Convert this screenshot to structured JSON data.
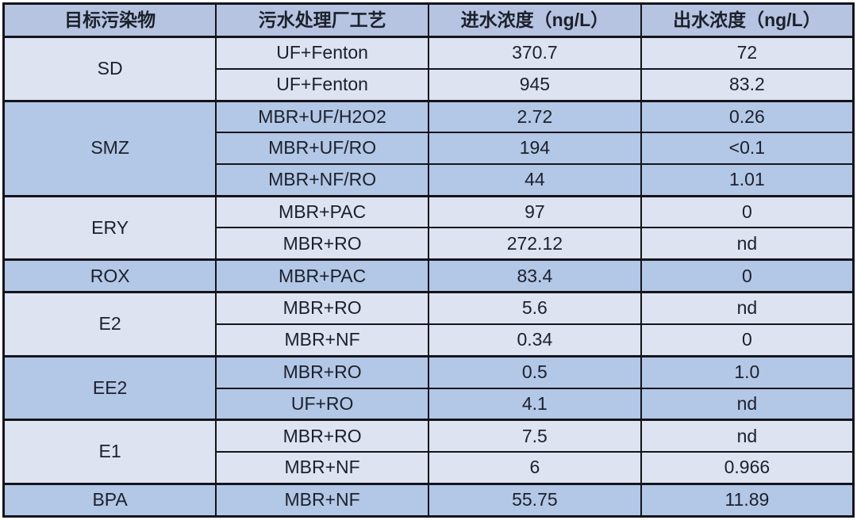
{
  "table": {
    "columns": [
      "目标污染物",
      "污水处理厂工艺",
      "进水浓度（ng/L）",
      "出水浓度（ng/L）"
    ],
    "groups": [
      {
        "pollutant": "SD",
        "shade": "light",
        "rows": [
          [
            "UF+Fenton",
            "370.7",
            "72"
          ],
          [
            "UF+Fenton",
            "945",
            "83.2"
          ]
        ]
      },
      {
        "pollutant": "SMZ",
        "shade": "medium",
        "rows": [
          [
            "MBR+UF/H2O2",
            "2.72",
            "0.26"
          ],
          [
            "MBR+UF/RO",
            "194",
            "<0.1"
          ],
          [
            "MBR+NF/RO",
            "44",
            "1.01"
          ]
        ]
      },
      {
        "pollutant": "ERY",
        "shade": "light",
        "rows": [
          [
            "MBR+PAC",
            "97",
            "0"
          ],
          [
            "MBR+RO",
            "272.12",
            "nd"
          ]
        ]
      },
      {
        "pollutant": "ROX",
        "shade": "medium",
        "rows": [
          [
            "MBR+PAC",
            "83.4",
            "0"
          ]
        ]
      },
      {
        "pollutant": "E2",
        "shade": "light",
        "rows": [
          [
            "MBR+RO",
            "5.6",
            "nd"
          ],
          [
            "MBR+NF",
            "0.34",
            "0"
          ]
        ]
      },
      {
        "pollutant": "EE2",
        "shade": "medium",
        "rows": [
          [
            "MBR+RO",
            "0.5",
            "1.0"
          ],
          [
            "UF+RO",
            "4.1",
            "nd"
          ]
        ]
      },
      {
        "pollutant": "E1",
        "shade": "light",
        "rows": [
          [
            "MBR+RO",
            "7.5",
            "nd"
          ],
          [
            "MBR+NF",
            "6",
            "0.966"
          ]
        ]
      },
      {
        "pollutant": "BPA",
        "shade": "medium",
        "rows": [
          [
            "MBR+NF",
            "55.75",
            "11.89"
          ]
        ]
      }
    ],
    "colors": {
      "header_bg": "#b6c4e1",
      "light_group_bg": "#dee3f1",
      "medium_group_bg": "#b3c7e6",
      "border": "#14141c",
      "text": "#1c202c"
    }
  },
  "chart_data": {
    "type": "table",
    "columns": [
      "目标污染物",
      "污水处理厂工艺",
      "进水浓度（ng/L）",
      "出水浓度（ng/L）"
    ],
    "rows": [
      [
        "SD",
        "UF+Fenton",
        "370.7",
        "72"
      ],
      [
        "SD",
        "UF+Fenton",
        "945",
        "83.2"
      ],
      [
        "SMZ",
        "MBR+UF/H2O2",
        "2.72",
        "0.26"
      ],
      [
        "SMZ",
        "MBR+UF/RO",
        "194",
        "<0.1"
      ],
      [
        "SMZ",
        "MBR+NF/RO",
        "44",
        "1.01"
      ],
      [
        "ERY",
        "MBR+PAC",
        "97",
        "0"
      ],
      [
        "ERY",
        "MBR+RO",
        "272.12",
        "nd"
      ],
      [
        "ROX",
        "MBR+PAC",
        "83.4",
        "0"
      ],
      [
        "E2",
        "MBR+RO",
        "5.6",
        "nd"
      ],
      [
        "E2",
        "MBR+NF",
        "0.34",
        "0"
      ],
      [
        "EE2",
        "MBR+RO",
        "0.5",
        "1.0"
      ],
      [
        "EE2",
        "UF+RO",
        "4.1",
        "nd"
      ],
      [
        "E1",
        "MBR+RO",
        "7.5",
        "nd"
      ],
      [
        "E1",
        "MBR+NF",
        "6",
        "0.966"
      ],
      [
        "BPA",
        "MBR+NF",
        "55.75",
        "11.89"
      ]
    ]
  }
}
